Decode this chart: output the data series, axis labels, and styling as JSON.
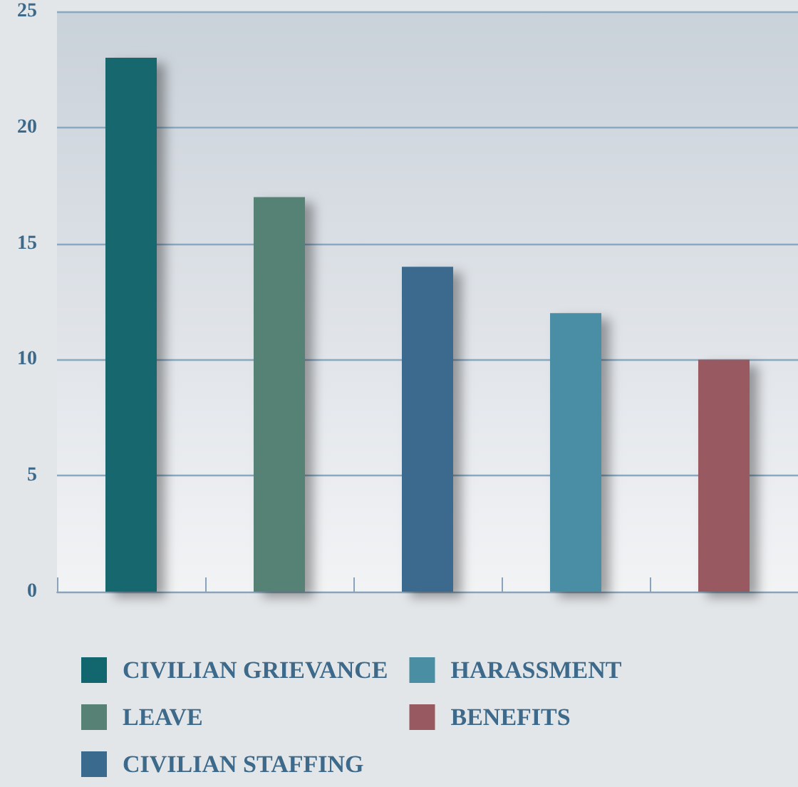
{
  "chart_data": {
    "type": "bar",
    "categories": [
      null,
      null,
      null,
      null,
      null
    ],
    "series": [
      {
        "name": "CIVILIAN GRIEVANCE",
        "color": "#12676e",
        "values": [
          23,
          null,
          null,
          null,
          null
        ]
      },
      {
        "name": "LEAVE",
        "color": "#568174",
        "values": [
          null,
          17,
          null,
          null,
          null
        ]
      },
      {
        "name": "CIVILIAN STAFFING",
        "color": "#3a6a8e",
        "values": [
          null,
          null,
          14,
          null,
          null
        ]
      },
      {
        "name": "HARASSMENT",
        "color": "#4a8ea4",
        "values": [
          null,
          null,
          null,
          12,
          null
        ]
      },
      {
        "name": "BENEFITS",
        "color": "#985a60",
        "values": [
          null,
          null,
          null,
          null,
          10
        ]
      }
    ],
    "ylim": [
      0,
      25
    ],
    "yticks": [
      0,
      5,
      10,
      15,
      20,
      25
    ],
    "grid": "y",
    "legend": "bottom"
  }
}
